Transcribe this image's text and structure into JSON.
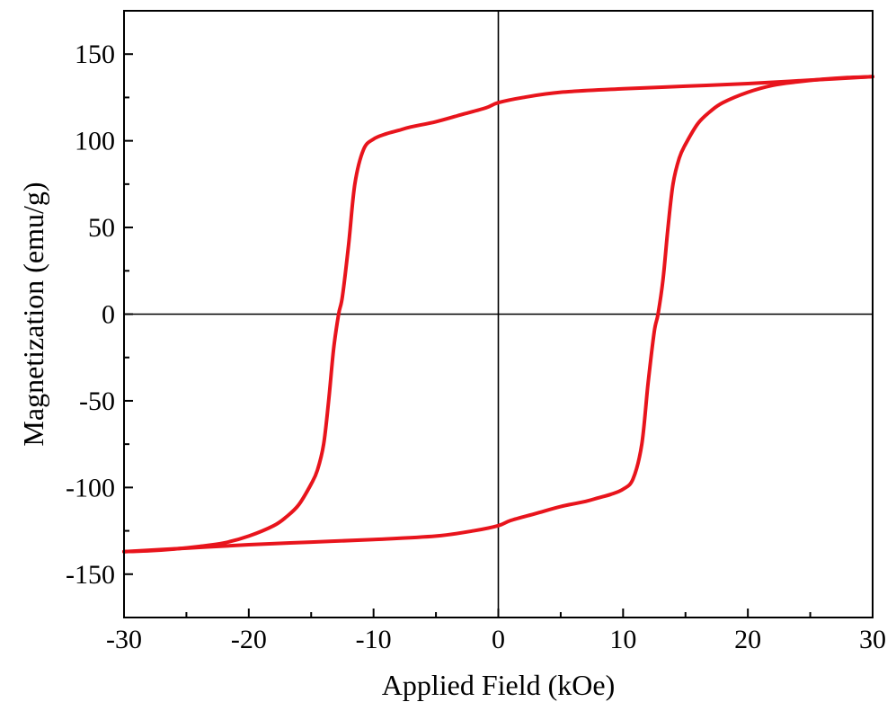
{
  "chart_data": {
    "type": "line",
    "title": "",
    "xlabel": "Applied Field (kOe)",
    "ylabel": "Magnetization (emu/g)",
    "xlim": [
      -30,
      30
    ],
    "ylim": [
      -175,
      175
    ],
    "x_ticks": [
      -30,
      -20,
      -10,
      0,
      10,
      20,
      30
    ],
    "y_ticks": [
      -150,
      -100,
      -50,
      0,
      50,
      100,
      150
    ],
    "x_tick_labels": [
      "-30",
      "-20",
      "-10",
      "0",
      "10",
      "20",
      "30"
    ],
    "y_tick_labels": [
      "-150",
      "-100",
      "-50",
      "0",
      "50",
      "100",
      "150"
    ],
    "zero_lines": true,
    "grid": false,
    "legend": "none",
    "line_color": "#e8141c",
    "series": [
      {
        "x": [
          30,
          25,
          20,
          15,
          10,
          5,
          2,
          0,
          -1,
          -3,
          -5,
          -7,
          -8,
          -9,
          -10,
          -10.8,
          -11.5,
          -12,
          -12.5,
          -12.8,
          -13.2,
          -13.6,
          -14,
          -14.5,
          -15,
          -16,
          -17,
          -18,
          -20,
          -22,
          -24,
          -26,
          -28,
          -30
        ],
        "y": [
          137,
          135,
          133,
          131.5,
          130,
          128,
          125,
          122,
          119,
          115,
          111,
          108,
          106,
          104,
          101,
          95,
          75,
          40,
          10,
          0,
          -20,
          -50,
          -75,
          -90,
          -98,
          -110,
          -117,
          -122,
          -128,
          -132,
          -134,
          -135.5,
          -136.5,
          -137
        ]
      },
      {
        "x": [
          -30,
          -25,
          -20,
          -15,
          -10,
          -5,
          -2,
          0,
          1,
          3,
          5,
          7,
          8,
          9,
          10,
          10.8,
          11.5,
          12,
          12.5,
          12.8,
          13.2,
          13.6,
          14,
          14.5,
          15,
          16,
          17,
          18,
          20,
          22,
          24,
          26,
          28,
          30
        ],
        "y": [
          -137,
          -135,
          -133,
          -131.5,
          -130,
          -128,
          -125,
          -122,
          -119,
          -115,
          -111,
          -108,
          -106,
          -104,
          -101,
          -95,
          -75,
          -40,
          -10,
          0,
          20,
          50,
          75,
          90,
          98,
          110,
          117,
          122,
          128,
          132,
          134,
          135.5,
          136.5,
          137
        ]
      }
    ]
  }
}
